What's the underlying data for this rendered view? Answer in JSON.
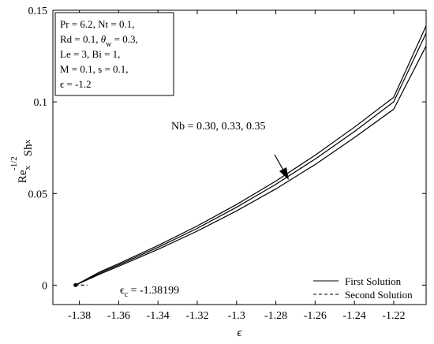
{
  "chart_data": {
    "type": "line",
    "xlabel": "ϵ",
    "ylabel": "Re_x^{-1/2}Sh_x",
    "xlim": [
      -1.3935,
      -1.2035
    ],
    "ylim": [
      -0.0106,
      0.15
    ],
    "xticks": [
      -1.38,
      -1.36,
      -1.34,
      -1.32,
      -1.3,
      -1.28,
      -1.26,
      -1.24,
      -1.22
    ],
    "xtick_labels": [
      "-1.38",
      "-1.36",
      "-1.34",
      "-1.32",
      "-1.3",
      "-1.28",
      "-1.26",
      "-1.24",
      "-1.22"
    ],
    "yticks": [
      0,
      0.05,
      0.1,
      0.15
    ],
    "ytick_labels": [
      "0",
      "0.05",
      "0.1",
      "0.15"
    ],
    "grid": false,
    "legend_position": "bottom-right",
    "legend": [
      {
        "label": "First Solution",
        "style": "solid"
      },
      {
        "label": "Second Solution",
        "style": "dashed"
      }
    ],
    "parameter_box": [
      "Pr = 6.2, Nt = 0.1,",
      "Rd = 0.1, θ_w = 0.3,",
      "Le = 3, Bi = 1,",
      "M = 0.1, s = 0.1,",
      "ϵ = -1.2"
    ],
    "annotations": {
      "nb_text": "Nb = 0.30, 0.33, 0.35",
      "critical_text": "ϵ_c = -1.38199"
    },
    "critical_point": {
      "x": -1.38199,
      "y": 0.0
    },
    "series": [
      {
        "style": "solid",
        "x": [
          -1.38199,
          -1.37,
          -1.36,
          -1.34,
          -1.32,
          -1.3,
          -1.28,
          -1.26,
          -1.24,
          -1.22,
          -1.2035
        ],
        "y": [
          0.0,
          0.0058,
          0.0103,
          0.0195,
          0.0295,
          0.0405,
          0.0525,
          0.0658,
          0.0805,
          0.096,
          0.1305
        ]
      },
      {
        "style": "solid",
        "x": [
          -1.38199,
          -1.37,
          -1.36,
          -1.34,
          -1.32,
          -1.3,
          -1.28,
          -1.26,
          -1.24,
          -1.22,
          -1.2035
        ],
        "y": [
          0.0,
          0.0064,
          0.011,
          0.0206,
          0.031,
          0.0425,
          0.055,
          0.0688,
          0.0838,
          0.1,
          0.1375
        ]
      },
      {
        "style": "solid",
        "x": [
          -1.38199,
          -1.37,
          -1.36,
          -1.34,
          -1.32,
          -1.3,
          -1.28,
          -1.26,
          -1.24,
          -1.22,
          -1.2035
        ],
        "y": [
          0.0,
          0.007,
          0.0117,
          0.0216,
          0.0323,
          0.044,
          0.0568,
          0.0709,
          0.0862,
          0.1025,
          0.1415
        ]
      },
      {
        "style": "dashed",
        "x": [
          -1.38199,
          -1.376
        ],
        "y": [
          0.0,
          0.0
        ]
      }
    ]
  }
}
